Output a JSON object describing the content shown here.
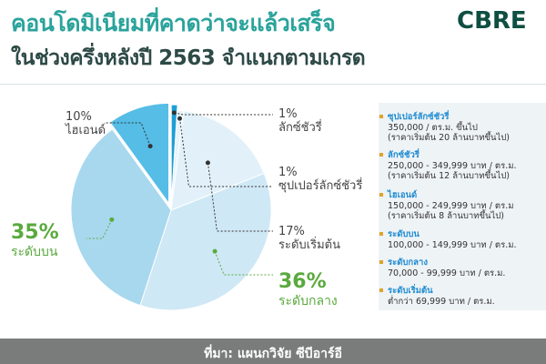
{
  "title": {
    "line1": "คอนโดมิเนียมที่คาดว่าจะแล้วเสร็จ",
    "line2": "ในช่วงครึ่งหลังปี 2563 จำแนกตามเกรด"
  },
  "logo": "CBRE",
  "chart_data": {
    "type": "pie",
    "slices": [
      {
        "label": "ลักซ์ชัวรี่",
        "value": 1,
        "pct_label": "1%",
        "color": "#1d9fd6"
      },
      {
        "label": "ซุปเปอร์ลักซ์ชัวรี่",
        "value": 1,
        "pct_label": "1%",
        "color": "#e8f3fb"
      },
      {
        "label": "ระดับเริ่มต้น",
        "value": 17,
        "pct_label": "17%",
        "color": "#e2f1f9"
      },
      {
        "label": "ระดับกลาง",
        "value": 36,
        "pct_label": "36%",
        "color": "#cfe8f5"
      },
      {
        "label": "ระดับบน",
        "value": 35,
        "pct_label": "35%",
        "color": "#a8d8ee"
      },
      {
        "label": "ไฮเอนด์",
        "value": 10,
        "pct_label": "10%",
        "color": "#55bde6"
      }
    ],
    "title": ""
  },
  "info_box": [
    {
      "title": "ซุปเปอร์ลักซ์ชัวรี่",
      "lines": [
        "350,000 / ตร.ม. ขึ้นไป",
        "(ราคาเริ่มต้น 20 ล้านบาทขึ้นไป)"
      ]
    },
    {
      "title": "ลักซ์ชัวรี่",
      "lines": [
        "250,000 - 349,999 บาท / ตร.ม.",
        "(ราคาเริ่มต้น 12 ล้านบาทขึ้นไป)"
      ]
    },
    {
      "title": "ไฮเอนด์",
      "lines": [
        "150,000 - 249,999 บาท / ตร.ม",
        "(ราคาเริ่มต้น 8 ล้านบาทขึ้นไป)"
      ]
    },
    {
      "title": "ระดับบน",
      "lines": [
        "100,000 - 149,999 บาท / ตร.ม."
      ]
    },
    {
      "title": "ระดับกลาง",
      "lines": [
        "70,000 - 99,999 บาท / ตร.ม."
      ]
    },
    {
      "title": "ระดับเริ่มต้น",
      "lines": [
        "ต่ำกว่า 69,999 บาท / ตร.ม."
      ]
    }
  ],
  "footer": "ที่มา: แผนกวิจัย ซีบีอาร์อี"
}
